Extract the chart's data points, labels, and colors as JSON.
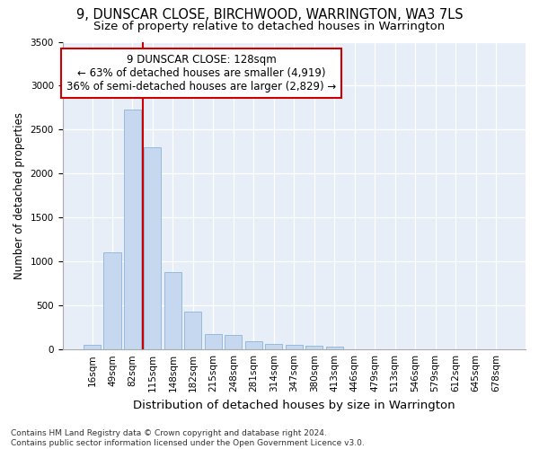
{
  "title1": "9, DUNSCAR CLOSE, BIRCHWOOD, WARRINGTON, WA3 7LS",
  "title2": "Size of property relative to detached houses in Warrington",
  "xlabel": "Distribution of detached houses by size in Warrington",
  "ylabel": "Number of detached properties",
  "categories": [
    "16sqm",
    "49sqm",
    "82sqm",
    "115sqm",
    "148sqm",
    "182sqm",
    "215sqm",
    "248sqm",
    "281sqm",
    "314sqm",
    "347sqm",
    "380sqm",
    "413sqm",
    "446sqm",
    "479sqm",
    "513sqm",
    "546sqm",
    "579sqm",
    "612sqm",
    "645sqm",
    "678sqm"
  ],
  "values": [
    50,
    1110,
    2730,
    2300,
    880,
    430,
    175,
    165,
    95,
    65,
    55,
    45,
    35,
    5,
    5,
    3,
    2,
    1,
    1,
    0,
    0
  ],
  "bar_color": "#c5d8ef",
  "bar_edge_color": "#8cb4d8",
  "vline_x_index": 3,
  "vline_color": "#cc0000",
  "annotation_text": "9 DUNSCAR CLOSE: 128sqm\n← 63% of detached houses are smaller (4,919)\n36% of semi-detached houses are larger (2,829) →",
  "annotation_box_color": "#cc0000",
  "ylim": [
    0,
    3500
  ],
  "yticks": [
    0,
    500,
    1000,
    1500,
    2000,
    2500,
    3000,
    3500
  ],
  "bg_color": "#e8eef8",
  "footer_text": "Contains HM Land Registry data © Crown copyright and database right 2024.\nContains public sector information licensed under the Open Government Licence v3.0.",
  "title1_fontsize": 10.5,
  "title2_fontsize": 9.5,
  "xlabel_fontsize": 9.5,
  "ylabel_fontsize": 8.5,
  "tick_fontsize": 7.5,
  "annotation_fontsize": 8.5,
  "footer_fontsize": 6.5
}
